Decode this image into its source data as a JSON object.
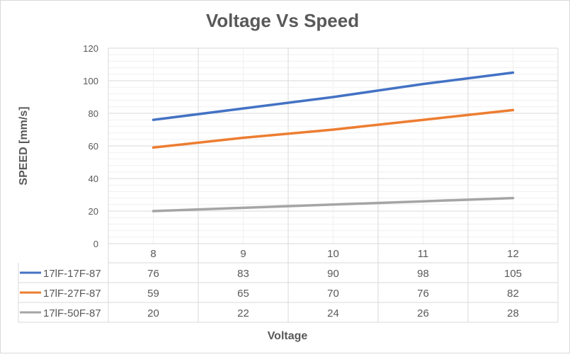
{
  "chart_data": {
    "type": "line",
    "title": "Voltage Vs Speed",
    "xlabel": "Voltage",
    "ylabel": "SPEED [mm/s]",
    "categories": [
      "8",
      "9",
      "10",
      "11",
      "12"
    ],
    "ylim": [
      0,
      120
    ],
    "yticks": [
      "0",
      "20",
      "40",
      "60",
      "80",
      "100",
      "120"
    ],
    "grid": true,
    "legend": "data-table",
    "series": [
      {
        "name": "17lF-17F-87",
        "color": "#4472C4",
        "values": [
          76,
          83,
          90,
          98,
          105
        ]
      },
      {
        "name": "17lF-27F-87",
        "color": "#ED7D31",
        "values": [
          59,
          65,
          70,
          76,
          82
        ]
      },
      {
        "name": "17lF-50F-87",
        "color": "#A5A5A5",
        "values": [
          20,
          22,
          24,
          26,
          28
        ]
      }
    ]
  }
}
